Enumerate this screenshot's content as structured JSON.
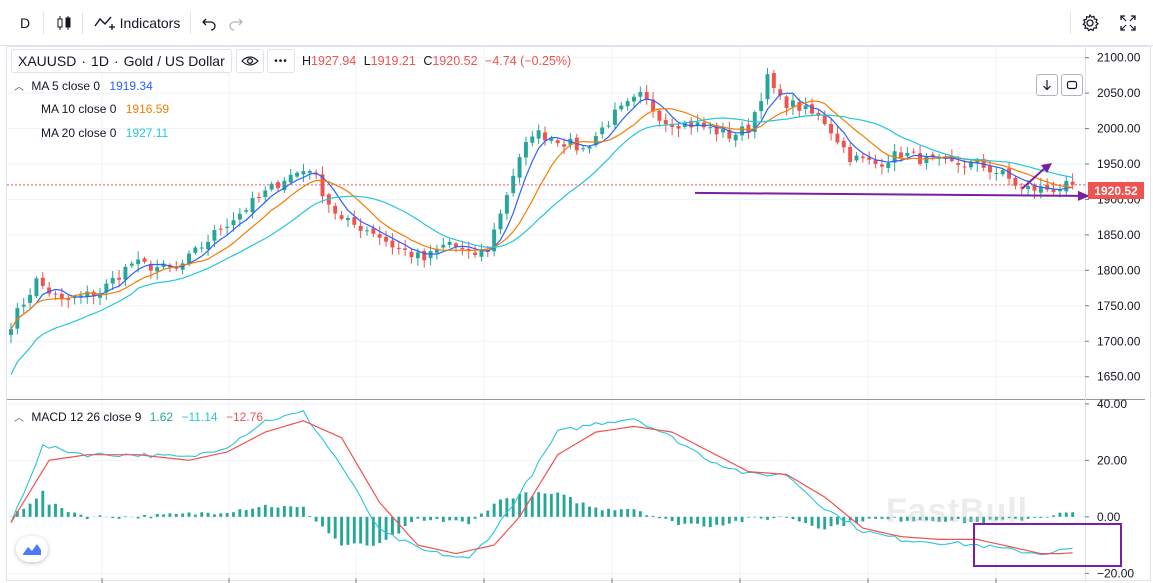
{
  "toolbar": {
    "interval": "D",
    "indicators_label": "Indicators"
  },
  "symbol": {
    "ticker": "XAUUSD",
    "interval": "1D",
    "description": "Gold / US Dollar",
    "more": "•••"
  },
  "ohlc": {
    "h_key": "H",
    "h": "1927.94",
    "l_key": "L",
    "l": "1919.21",
    "c_key": "C",
    "c": "1920.52",
    "change": "−4.74 (−0.25%)"
  },
  "ma": [
    {
      "label": "MA 5 close 0",
      "value": "1919.34",
      "color": "#2962ff"
    },
    {
      "label": "MA 10 close 0",
      "value": "1916.59",
      "color": "#f57c00"
    },
    {
      "label": "MA 20 close 0",
      "value": "1927.11",
      "color": "#26c6da"
    }
  ],
  "macd_legend": {
    "label": "MACD 12 26 close 9",
    "hist": "1.62",
    "hist_color": "#26a69a",
    "macd": "−11.14",
    "macd_color": "#26c6da",
    "signal": "−12.76",
    "signal_color": "#ef5350"
  },
  "last_price": "1920.52",
  "watermark": "FastBull",
  "colors": {
    "up": "#26a69a",
    "down": "#ef5350",
    "ma5": "#2962ff",
    "ma10": "#f57c00",
    "ma20": "#26c6da",
    "macd": "#26c6da",
    "signal": "#ef5350",
    "annotation": "#7b1fa2",
    "price_line": "#ef5350"
  },
  "chart_data": [
    {
      "type": "candlestick",
      "title": "XAUUSD, 1D",
      "ylabels": [
        "2100.00",
        "2050.00",
        "2000.00",
        "1950.00",
        "1900.00",
        "1850.00",
        "1800.00",
        "1750.00",
        "1700.00",
        "1650.00"
      ],
      "ylim": [
        1620,
        2115
      ],
      "grid": true,
      "waypoints": [
        [
          0,
          1725
        ],
        [
          4,
          1785
        ],
        [
          8,
          1755
        ],
        [
          14,
          1770
        ],
        [
          19,
          1810
        ],
        [
          26,
          1800
        ],
        [
          33,
          1860
        ],
        [
          38,
          1895
        ],
        [
          43,
          1930
        ],
        [
          47,
          1945
        ],
        [
          50,
          1895
        ],
        [
          52,
          1870
        ],
        [
          57,
          1855
        ],
        [
          60,
          1835
        ],
        [
          65,
          1815
        ],
        [
          69,
          1840
        ],
        [
          72,
          1820
        ],
        [
          75,
          1830
        ],
        [
          79,
          1935
        ],
        [
          82,
          1995
        ],
        [
          86,
          1985
        ],
        [
          90,
          1970
        ],
        [
          95,
          2020
        ],
        [
          99,
          2045
        ],
        [
          103,
          2010
        ],
        [
          108,
          2005
        ],
        [
          113,
          1990
        ],
        [
          116,
          2000
        ],
        [
          119,
          2070
        ],
        [
          121,
          2040
        ],
        [
          124,
          2030
        ],
        [
          128,
          2010
        ],
        [
          132,
          1960
        ],
        [
          136,
          1950
        ],
        [
          140,
          1965
        ],
        [
          144,
          1955
        ],
        [
          148,
          1950
        ],
        [
          152,
          1950
        ],
        [
          156,
          1935
        ],
        [
          159,
          1915
        ],
        [
          164,
          1915
        ],
        [
          167,
          1920
        ]
      ],
      "annotations": [
        {
          "type": "horizontal-arrow",
          "price": 1905,
          "text": ""
        },
        {
          "type": "up-arrow",
          "price": 1915,
          "text": ""
        }
      ]
    },
    {
      "type": "line",
      "title": "MACD 12 26 close 9",
      "ylabels": [
        "40.00",
        "20.00",
        "0.00",
        "−20.00"
      ],
      "ylim": [
        -22,
        41
      ],
      "macd_waypoints": [
        [
          0,
          -2
        ],
        [
          5,
          25
        ],
        [
          12,
          22
        ],
        [
          20,
          22
        ],
        [
          28,
          21
        ],
        [
          34,
          25
        ],
        [
          40,
          34
        ],
        [
          46,
          37
        ],
        [
          52,
          18
        ],
        [
          58,
          -5
        ],
        [
          65,
          -12
        ],
        [
          72,
          -15
        ],
        [
          76,
          -5
        ],
        [
          80,
          8
        ],
        [
          86,
          30
        ],
        [
          92,
          33
        ],
        [
          98,
          35
        ],
        [
          104,
          28
        ],
        [
          110,
          20
        ],
        [
          116,
          15
        ],
        [
          122,
          15
        ],
        [
          128,
          3
        ],
        [
          134,
          -5
        ],
        [
          140,
          -8
        ],
        [
          146,
          -9
        ],
        [
          152,
          -10
        ],
        [
          158,
          -12
        ],
        [
          162,
          -13
        ],
        [
          165,
          -12
        ],
        [
          167,
          -11.14
        ]
      ],
      "signal_waypoints": [
        [
          0,
          -2
        ],
        [
          6,
          20
        ],
        [
          12,
          22
        ],
        [
          20,
          22
        ],
        [
          28,
          20
        ],
        [
          34,
          23
        ],
        [
          40,
          30
        ],
        [
          46,
          34
        ],
        [
          52,
          28
        ],
        [
          58,
          5
        ],
        [
          64,
          -10
        ],
        [
          70,
          -13
        ],
        [
          76,
          -10
        ],
        [
          80,
          0
        ],
        [
          86,
          22
        ],
        [
          92,
          30
        ],
        [
          98,
          32
        ],
        [
          104,
          30
        ],
        [
          110,
          23
        ],
        [
          116,
          16
        ],
        [
          122,
          15
        ],
        [
          128,
          7
        ],
        [
          134,
          -4
        ],
        [
          140,
          -7
        ],
        [
          146,
          -8
        ],
        [
          152,
          -8
        ],
        [
          158,
          -11
        ],
        [
          162,
          -13
        ],
        [
          165,
          -13
        ],
        [
          167,
          -12.76
        ]
      ]
    }
  ]
}
